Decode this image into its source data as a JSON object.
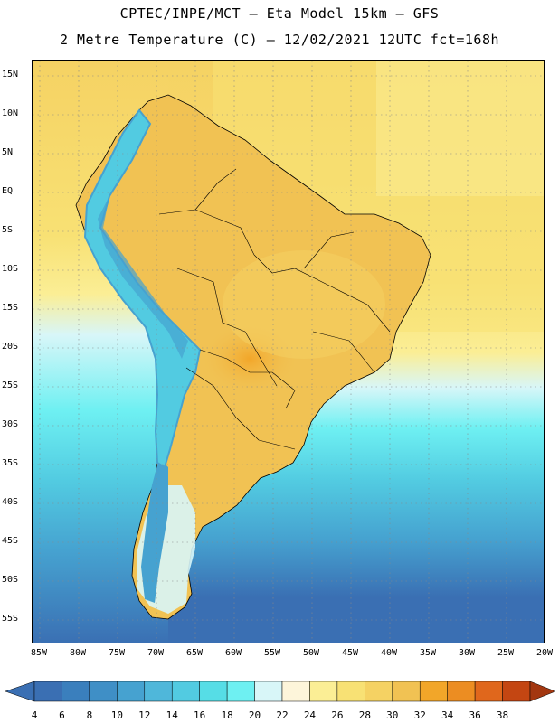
{
  "title": {
    "line1": "CPTEC/INPE/MCT –  Eta Model 15km – GFS",
    "line2": "2 Metre Temperature (C) – 12/02/2021 12UTC fct=168h"
  },
  "axes": {
    "lat_labels": [
      "15N",
      "10N",
      "5N",
      "EQ",
      "5S",
      "10S",
      "15S",
      "20S",
      "25S",
      "30S",
      "35S",
      "40S",
      "45S",
      "50S",
      "55S"
    ],
    "lon_labels": [
      "85W",
      "80W",
      "75W",
      "70W",
      "65W",
      "60W",
      "55W",
      "50W",
      "45W",
      "40W",
      "35W",
      "30W",
      "25W",
      "20W"
    ],
    "lat_range": [
      17.2,
      -58.0
    ],
    "lon_range": [
      -86.0,
      -20.0
    ]
  },
  "colorbar": {
    "labels": [
      "4",
      "6",
      "8",
      "10",
      "12",
      "14",
      "16",
      "18",
      "20",
      "22",
      "24",
      "26",
      "28",
      "30",
      "32",
      "34",
      "36",
      "38"
    ],
    "colors": [
      "#3a6fb3",
      "#3a7fbd",
      "#3f8fc6",
      "#46a2d0",
      "#4fb7da",
      "#52cbe1",
      "#56dde6",
      "#6ef0f2",
      "#d8f6f8",
      "#fdf5da",
      "#fbee95",
      "#f8e174",
      "#f5d263",
      "#f1c253",
      "#f2a629",
      "#ec8d22",
      "#e0671c",
      "#c44612"
    ],
    "arrow_left_color": "#3a6fb3",
    "arrow_right_color": "#a33710"
  }
}
